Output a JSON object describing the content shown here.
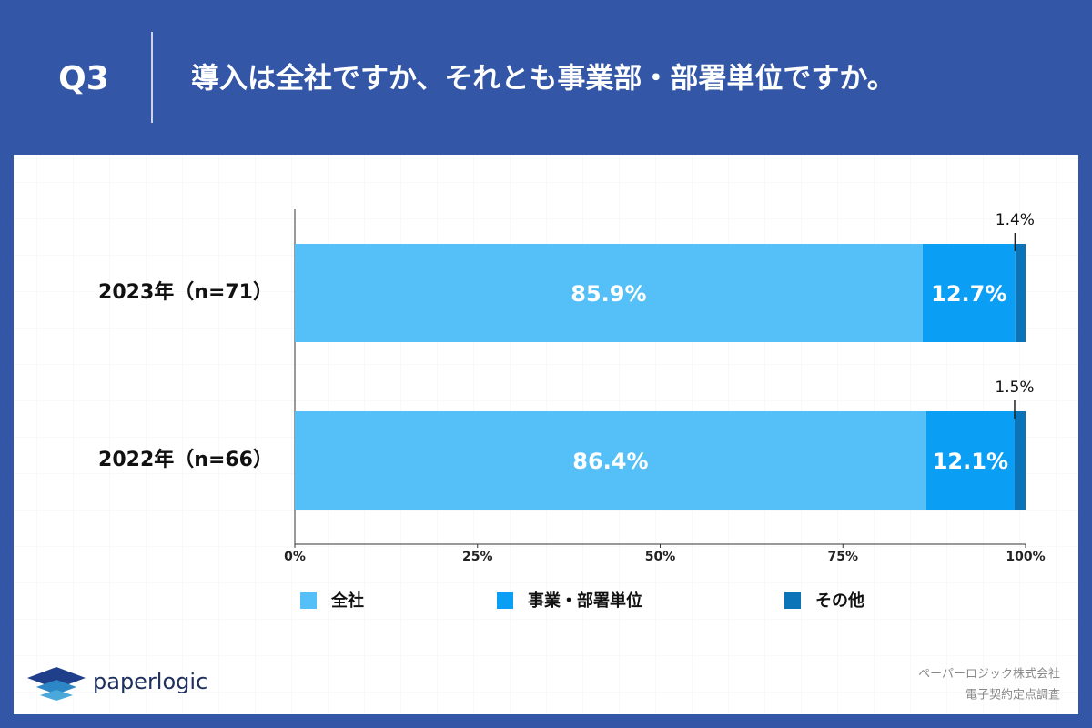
{
  "header": {
    "question": "Q3",
    "title": "導入は全社ですか、それとも事業部・部署単位ですか。"
  },
  "footer": {
    "brand": "paperlogic",
    "company": "ペーパーロジック株式会社",
    "survey": "電子契約定点調査"
  },
  "chart_data": {
    "type": "stacked-barh",
    "categories": [
      "2023年（n=71）",
      "2022年（n=66）"
    ],
    "series": [
      {
        "name": "全社",
        "color": "#55bff8",
        "values": [
          85.9,
          86.4
        ],
        "value_labels": [
          "85.9%",
          "86.4%"
        ]
      },
      {
        "name": "事業・部署単位",
        "color": "#0a9ef5",
        "values": [
          12.7,
          12.1
        ],
        "value_labels": [
          "12.7%",
          "12.1%"
        ]
      },
      {
        "name": "その他",
        "color": "#0b74b8",
        "values": [
          1.4,
          1.5
        ],
        "value_labels": [
          "1.4%",
          "1.5%"
        ]
      }
    ],
    "xlim": [
      0,
      100
    ],
    "xticks": [
      {
        "value": 0,
        "label": "0%"
      },
      {
        "value": 25,
        "label": "25%"
      },
      {
        "value": 50,
        "label": "50%"
      },
      {
        "value": 75,
        "label": "75%"
      },
      {
        "value": 100,
        "label": "100%"
      }
    ],
    "legend": "bottom"
  }
}
